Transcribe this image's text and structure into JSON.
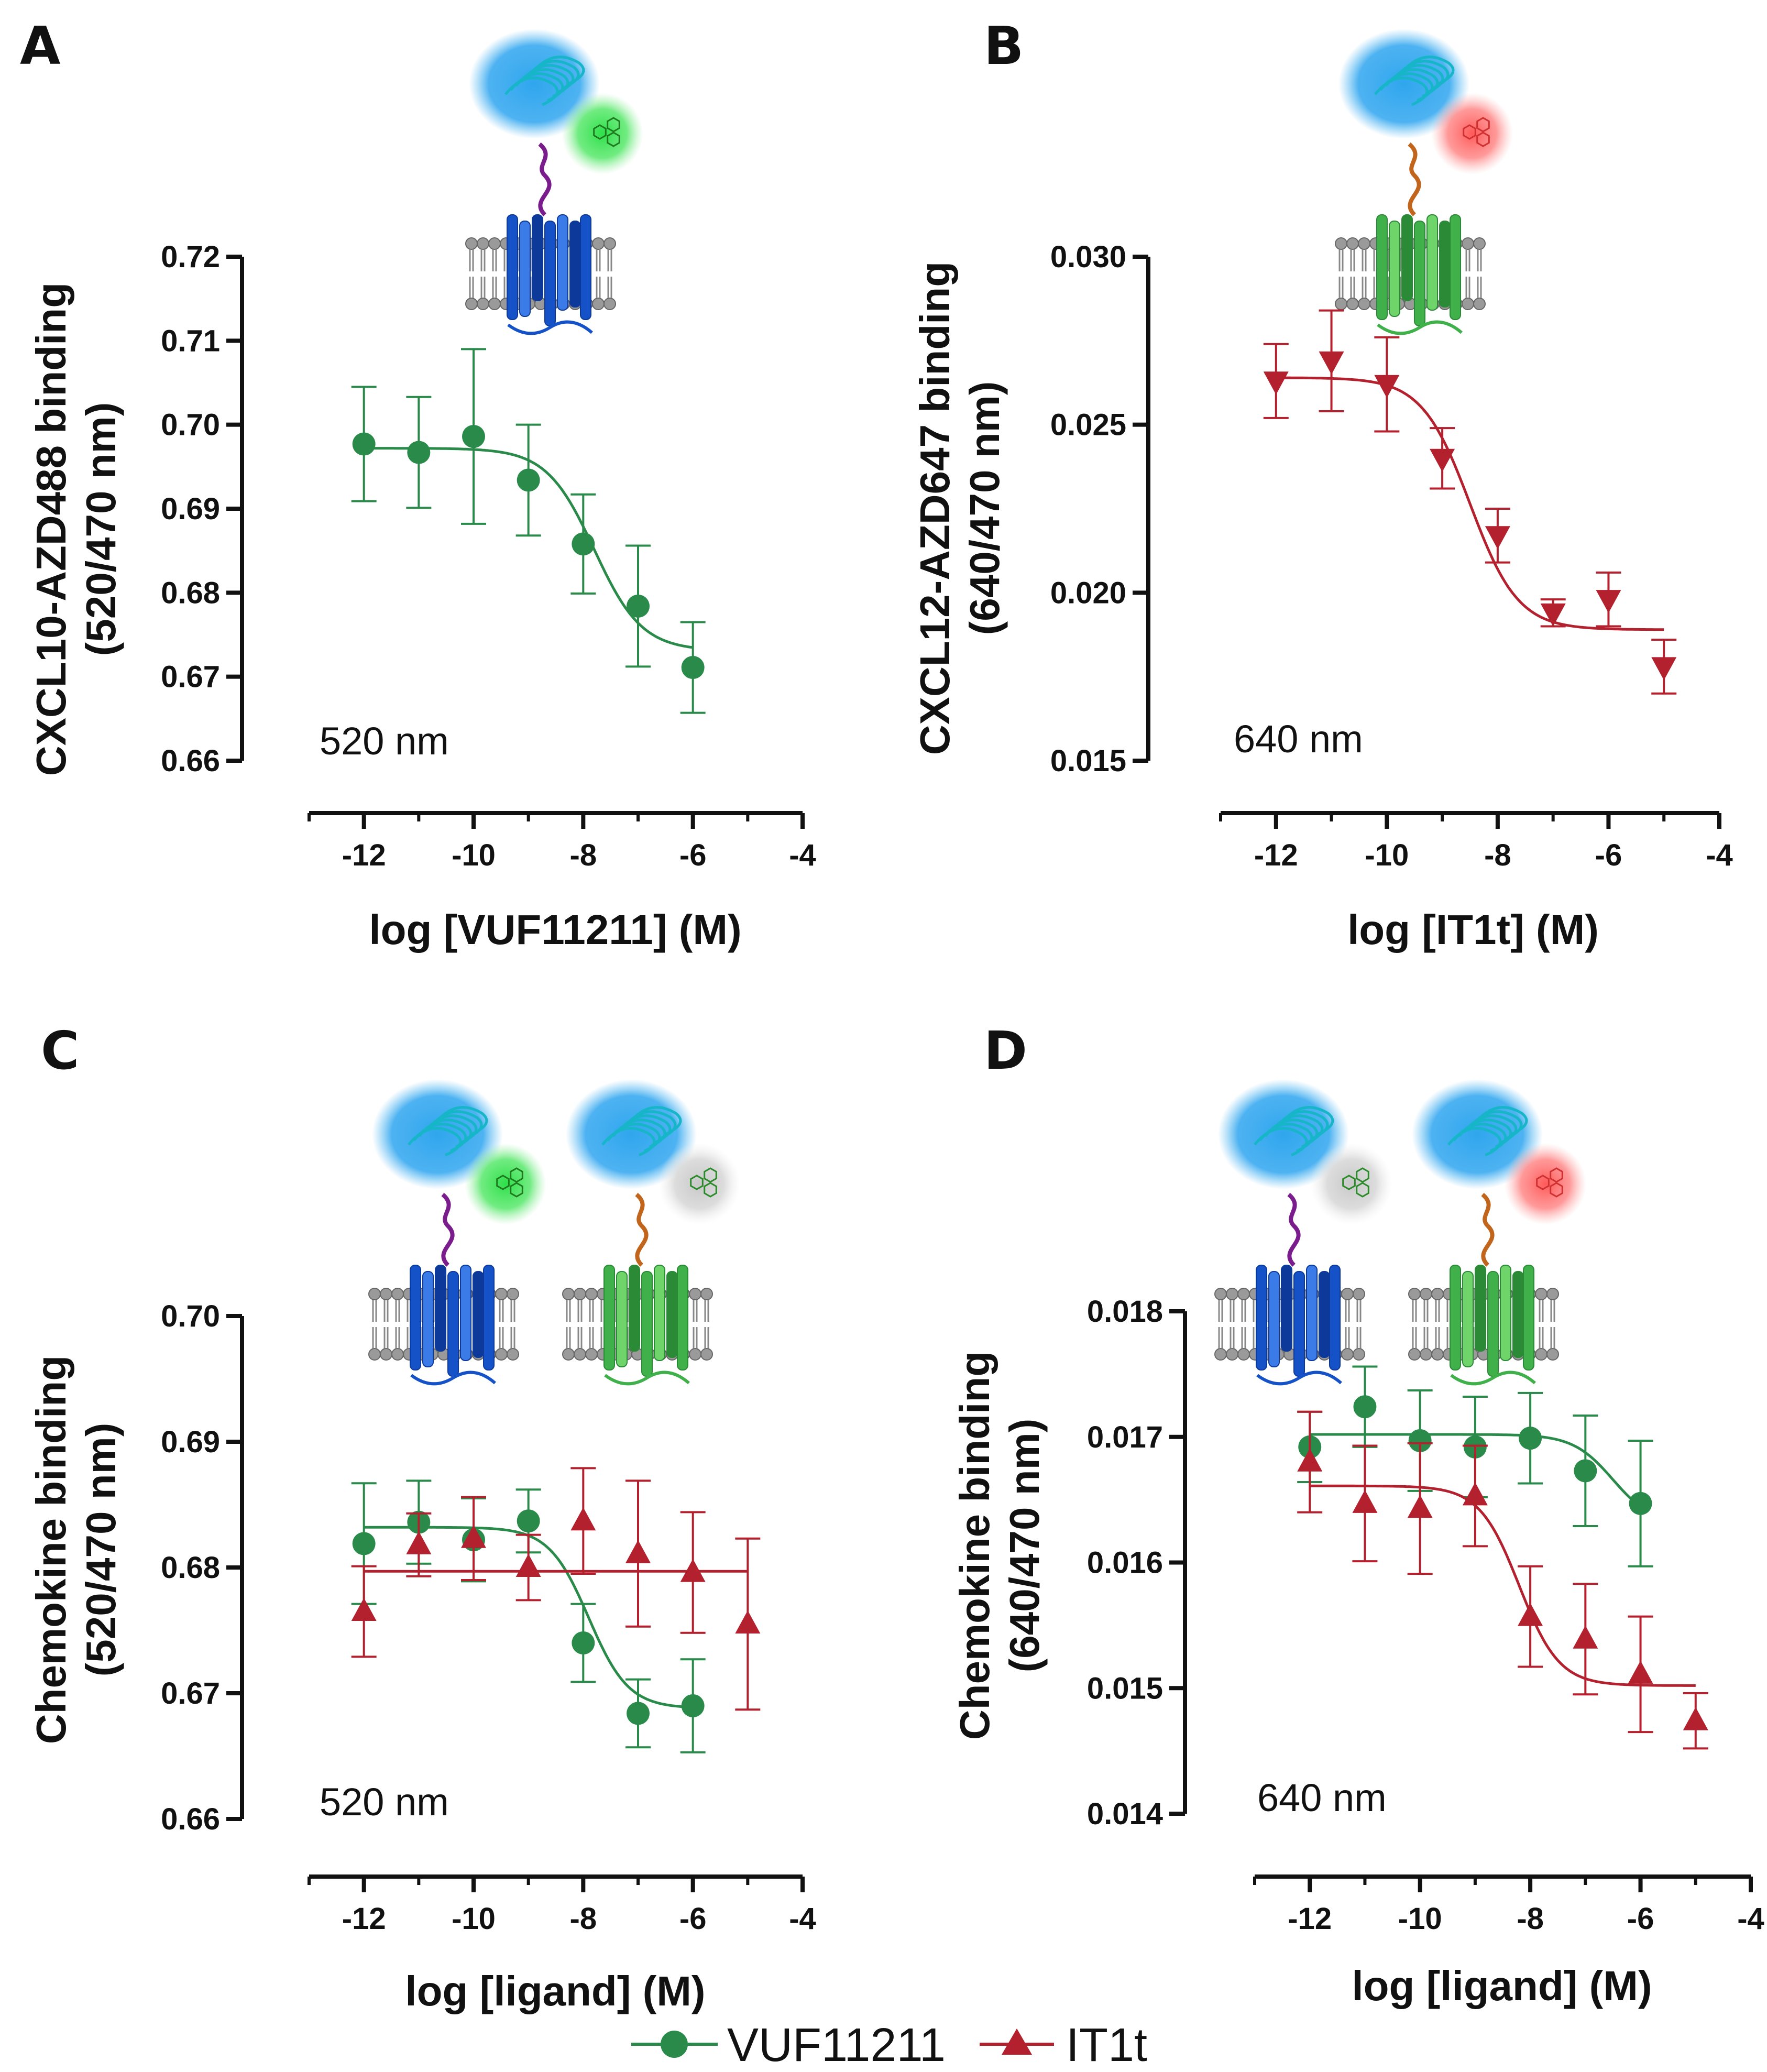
{
  "colors": {
    "vuf": "#2a8a4a",
    "it1t": "#b3202e",
    "axis": "#111111"
  },
  "legend": [
    {
      "name": "VUF11211",
      "color": "#2a8a4a",
      "marker": "circle"
    },
    {
      "name": "IT1t",
      "color": "#b3202e",
      "marker": "triangle-up"
    }
  ],
  "chart_data": [
    {
      "panel": "A",
      "type": "scatter",
      "ylabel_line1": "CXCL10-AZD488 binding",
      "ylabel_line2": "(520/470 nm)",
      "xlabel": "log [VUF11211] (M)",
      "wavelength_label": "520 nm",
      "xlim": [
        -13,
        -4
      ],
      "ylim": [
        0.66,
        0.72
      ],
      "xticks": [
        "-12",
        "-10",
        "-8",
        "-6",
        "-4"
      ],
      "yticks": [
        "0.66",
        "0.67",
        "0.68",
        "0.69",
        "0.70",
        "0.71",
        "0.72"
      ],
      "illustrations": [
        {
          "receptor": "blue",
          "acceptor": "green"
        }
      ],
      "series": [
        {
          "name": "VUF11211",
          "color": "#2a8a4a",
          "marker": "circle",
          "x": [
            -12,
            -11,
            -10,
            -9,
            -8,
            -7,
            -6
          ],
          "y": [
            0.6977,
            0.6967,
            0.6986,
            0.6934,
            0.6858,
            0.6784,
            0.6711
          ],
          "err": [
            0.0068,
            0.0066,
            0.0104,
            0.0066,
            0.0059,
            0.0072,
            0.0054
          ],
          "fit": {
            "top": 0.6972,
            "bottom": 0.6731,
            "logec50": -7.8,
            "hill": 1.0
          }
        }
      ]
    },
    {
      "panel": "B",
      "type": "scatter",
      "ylabel_line1": "CXCL12-AZD647 binding",
      "ylabel_line2": "(640/470 nm)",
      "xlabel": "log [IT1t] (M)",
      "wavelength_label": "640 nm",
      "xlim": [
        -13,
        -4
      ],
      "ylim": [
        0.015,
        0.03
      ],
      "xticks": [
        "-12",
        "-10",
        "-8",
        "-6",
        "-4"
      ],
      "yticks": [
        "0.015",
        "0.020",
        "0.025",
        "0.030"
      ],
      "illustrations": [
        {
          "receptor": "green",
          "acceptor": "red"
        }
      ],
      "series": [
        {
          "name": "IT1t",
          "color": "#b3202e",
          "marker": "triangle-down",
          "x": [
            -12,
            -11,
            -10,
            -9,
            -8,
            -7,
            -6,
            -5
          ],
          "y": [
            0.0263,
            0.0269,
            0.0262,
            0.024,
            0.0217,
            0.0194,
            0.0198,
            0.0178
          ],
          "err": [
            0.0011,
            0.0015,
            0.0014,
            0.0009,
            0.0008,
            0.0004,
            0.0008,
            0.0008
          ],
          "fit": {
            "top": 0.0264,
            "bottom": 0.0189,
            "logec50": -8.5,
            "hill": 1.0
          }
        }
      ]
    },
    {
      "panel": "C",
      "type": "scatter",
      "ylabel_line1": "Chemokine binding",
      "ylabel_line2": "(520/470 nm)",
      "xlabel": "log [ligand] (M)",
      "wavelength_label": "520 nm",
      "xlim": [
        -13,
        -4
      ],
      "ylim": [
        0.66,
        0.7
      ],
      "xticks": [
        "-12",
        "-10",
        "-8",
        "-6",
        "-4"
      ],
      "yticks": [
        "0.66",
        "0.67",
        "0.68",
        "0.69",
        "0.70"
      ],
      "illustrations": [
        {
          "receptor": "blue",
          "acceptor": "green"
        },
        {
          "receptor": "green",
          "acceptor": "grey"
        }
      ],
      "series": [
        {
          "name": "VUF11211",
          "color": "#2a8a4a",
          "marker": "circle",
          "x": [
            -12,
            -11,
            -10,
            -9,
            -8,
            -7,
            -6
          ],
          "y": [
            0.6819,
            0.6836,
            0.6822,
            0.6837,
            0.674,
            0.6684,
            0.669
          ],
          "err": [
            0.0048,
            0.0033,
            0.0033,
            0.0025,
            0.0031,
            0.0027,
            0.0037
          ],
          "fit": {
            "top": 0.6832,
            "bottom": 0.6688,
            "logec50": -7.9,
            "hill": 1.2
          }
        },
        {
          "name": "IT1t",
          "color": "#b3202e",
          "marker": "triangle-up",
          "x": [
            -12,
            -11,
            -10,
            -9,
            -8,
            -7,
            -6,
            -5
          ],
          "y": [
            0.6765,
            0.6818,
            0.6823,
            0.68,
            0.6837,
            0.6811,
            0.6796,
            0.6755
          ],
          "err": [
            0.0036,
            0.0025,
            0.0033,
            0.0026,
            0.0042,
            0.0058,
            0.0048,
            0.0068
          ],
          "fit": {
            "top": 0.6797,
            "bottom": 0.6797,
            "logec50": -8.0,
            "hill": 1.0
          }
        }
      ]
    },
    {
      "panel": "D",
      "type": "scatter",
      "ylabel_line1": "Chemokine binding",
      "ylabel_line2": "(640/470 nm)",
      "xlabel": "log [ligand] (M)",
      "wavelength_label": "640 nm",
      "xlim": [
        -13,
        -4
      ],
      "ylim": [
        0.014,
        0.018
      ],
      "xticks": [
        "-12",
        "-10",
        "-8",
        "-6",
        "-4"
      ],
      "yticks": [
        "0.014",
        "0.015",
        "0.016",
        "0.017",
        "0.018"
      ],
      "illustrations": [
        {
          "receptor": "blue",
          "acceptor": "grey"
        },
        {
          "receptor": "green",
          "acceptor": "red"
        }
      ],
      "series": [
        {
          "name": "VUF11211",
          "color": "#2a8a4a",
          "marker": "circle",
          "x": [
            -12,
            -11,
            -10,
            -9,
            -8,
            -7,
            -6
          ],
          "y": [
            0.01692,
            0.01724,
            0.01697,
            0.01692,
            0.01699,
            0.01673,
            0.01647
          ],
          "err": [
            0.00028,
            0.00032,
            0.0004,
            0.0004,
            0.00036,
            0.00044,
            0.0005
          ],
          "fit": {
            "top": 0.01702,
            "bottom": 0.0163,
            "logec50": -6.5,
            "hill": 1.2
          }
        },
        {
          "name": "IT1t",
          "color": "#b3202e",
          "marker": "triangle-up",
          "x": [
            -12,
            -11,
            -10,
            -9,
            -8,
            -7,
            -6,
            -5
          ],
          "y": [
            0.0168,
            0.01647,
            0.01643,
            0.01653,
            0.01557,
            0.01539,
            0.01511,
            0.01474
          ],
          "err": [
            0.0004,
            0.00046,
            0.00052,
            0.0004,
            0.0004,
            0.00044,
            0.00046,
            0.00022
          ],
          "fit": {
            "top": 0.01661,
            "bottom": 0.01502,
            "logec50": -8.2,
            "hill": 1.2
          }
        }
      ]
    }
  ]
}
